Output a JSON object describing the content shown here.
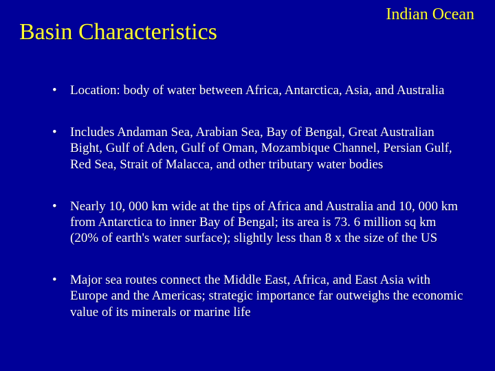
{
  "colors": {
    "background": "#000099",
    "title_color": "#ffff33",
    "text_color": "#ffffff"
  },
  "typography": {
    "font_family": "Times New Roman",
    "title_fontsize": 34,
    "header_label_fontsize": 24,
    "body_fontsize": 19
  },
  "header_label": "Indian Ocean",
  "title": "Basin Characteristics",
  "bullets": [
    "Location: body of water between Africa, Antarctica, Asia, and Australia",
    "Includes Andaman Sea, Arabian Sea, Bay of Bengal, Great Australian Bight, Gulf of Aden, Gulf of Oman, Mozambique Channel, Persian Gulf, Red Sea, Strait of Malacca, and other tributary water bodies",
    "Nearly 10, 000 km wide at the tips of Africa and Australia and 10, 000 km from Antarctica to inner Bay of Bengal; its area is 73. 6 million sq km (20% of earth's water surface); slightly less than 8 x the size of the US",
    "Major sea routes connect the Middle East, Africa, and East Asia with Europe and the Americas; strategic importance far outweighs the economic value of its minerals or marine life"
  ]
}
